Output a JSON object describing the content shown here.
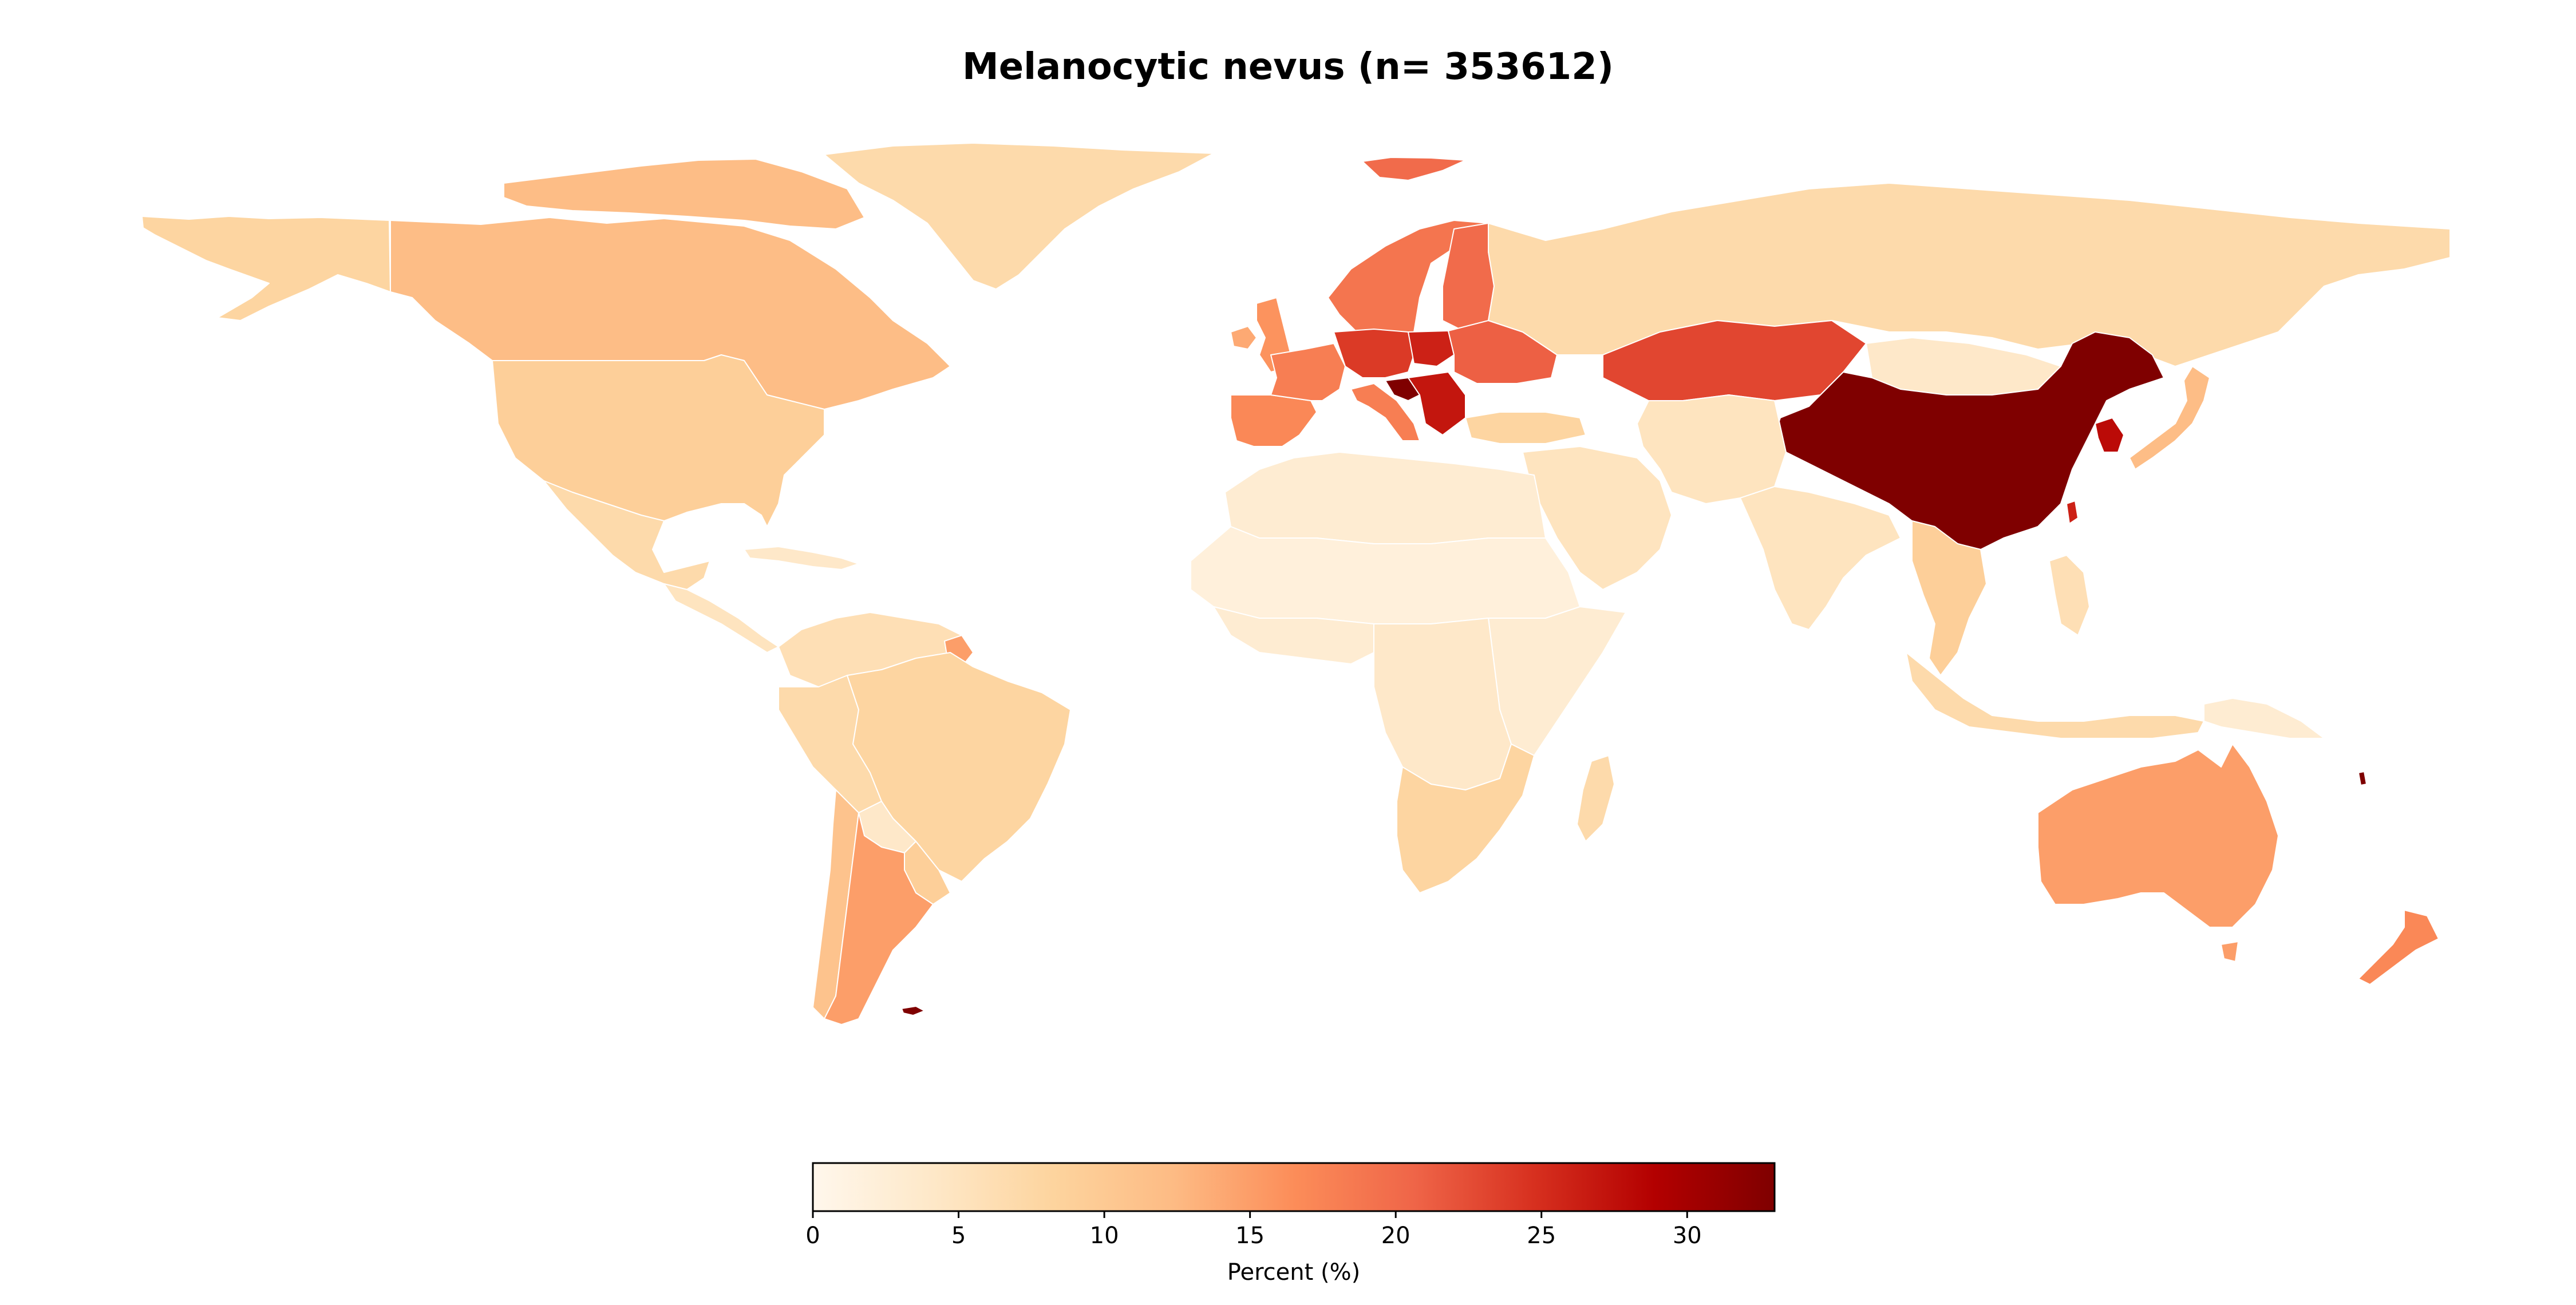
{
  "title": "Melanocytic nevus (n= 353612)",
  "colorbar": {
    "label": "Percent (%)",
    "ticks": [
      "0",
      "5",
      "10",
      "15",
      "20",
      "25",
      "30"
    ],
    "tick_values": [
      0,
      5,
      10,
      15,
      20,
      25,
      30
    ],
    "min": 0,
    "max": 33,
    "colormap": "OrRd",
    "stops": [
      "#fff7ec",
      "#fee8c8",
      "#fdd49e",
      "#fdbb84",
      "#fc8d59",
      "#ef6548",
      "#d7301f",
      "#b30000",
      "#7f0000"
    ]
  },
  "chart_data": {
    "type": "choropleth",
    "title": "Melanocytic nevus (n= 353612)",
    "value_label": "Percent (%)",
    "range": [
      0,
      33
    ],
    "regions": [
      {
        "name": "Canada",
        "value": 12
      },
      {
        "name": "United States",
        "value": 9
      },
      {
        "name": "Alaska",
        "value": 8
      },
      {
        "name": "Greenland",
        "value": 7
      },
      {
        "name": "Mexico",
        "value": 7
      },
      {
        "name": "Central America",
        "value": 5
      },
      {
        "name": "Caribbean",
        "value": 4
      },
      {
        "name": "Colombia/Venezuela",
        "value": 6
      },
      {
        "name": "Peru/Bolivia",
        "value": 7
      },
      {
        "name": "Brazil",
        "value": 8
      },
      {
        "name": "Paraguay",
        "value": 4
      },
      {
        "name": "Chile",
        "value": 11
      },
      {
        "name": "Argentina",
        "value": 15
      },
      {
        "name": "Uruguay",
        "value": 9
      },
      {
        "name": "French Guiana",
        "value": 15
      },
      {
        "name": "Falklands",
        "value": 33
      },
      {
        "name": "Svalbard",
        "value": 20
      },
      {
        "name": "Norway/Sweden",
        "value": 19
      },
      {
        "name": "Finland",
        "value": 20
      },
      {
        "name": "United Kingdom",
        "value": 16
      },
      {
        "name": "Ireland",
        "value": 14
      },
      {
        "name": "France",
        "value": 18
      },
      {
        "name": "Spain/Portugal",
        "value": 17
      },
      {
        "name": "Germany/Central Europe",
        "value": 24
      },
      {
        "name": "Poland",
        "value": 26
      },
      {
        "name": "Italy",
        "value": 18
      },
      {
        "name": "Balkans",
        "value": 27
      },
      {
        "name": "Croatia",
        "value": 33
      },
      {
        "name": "Ukraine/Eastern Europe",
        "value": 21
      },
      {
        "name": "Turkey",
        "value": 8
      },
      {
        "name": "Russia",
        "value": 7
      },
      {
        "name": "Kazakhstan",
        "value": 23
      },
      {
        "name": "Mongolia",
        "value": 4
      },
      {
        "name": "China",
        "value": 33
      },
      {
        "name": "Korea",
        "value": 28
      },
      {
        "name": "Japan",
        "value": 12
      },
      {
        "name": "Taiwan",
        "value": 26
      },
      {
        "name": "Middle East",
        "value": 5
      },
      {
        "name": "Iran/Central Asia",
        "value": 5
      },
      {
        "name": "India",
        "value": 5
      },
      {
        "name": "Southeast Asia",
        "value": 9
      },
      {
        "name": "Indonesia",
        "value": 7
      },
      {
        "name": "Philippines",
        "value": 6
      },
      {
        "name": "North Africa",
        "value": 3
      },
      {
        "name": "Sahel",
        "value": 2
      },
      {
        "name": "West Africa",
        "value": 3
      },
      {
        "name": "East Africa",
        "value": 3
      },
      {
        "name": "Central Africa",
        "value": 4
      },
      {
        "name": "Southern Africa",
        "value": 8
      },
      {
        "name": "Madagascar",
        "value": 7
      },
      {
        "name": "Australia",
        "value": 15
      },
      {
        "name": "New Zealand",
        "value": 17
      },
      {
        "name": "Papua New Guinea",
        "value": 3
      },
      {
        "name": "New Caledonia",
        "value": 33
      }
    ]
  }
}
